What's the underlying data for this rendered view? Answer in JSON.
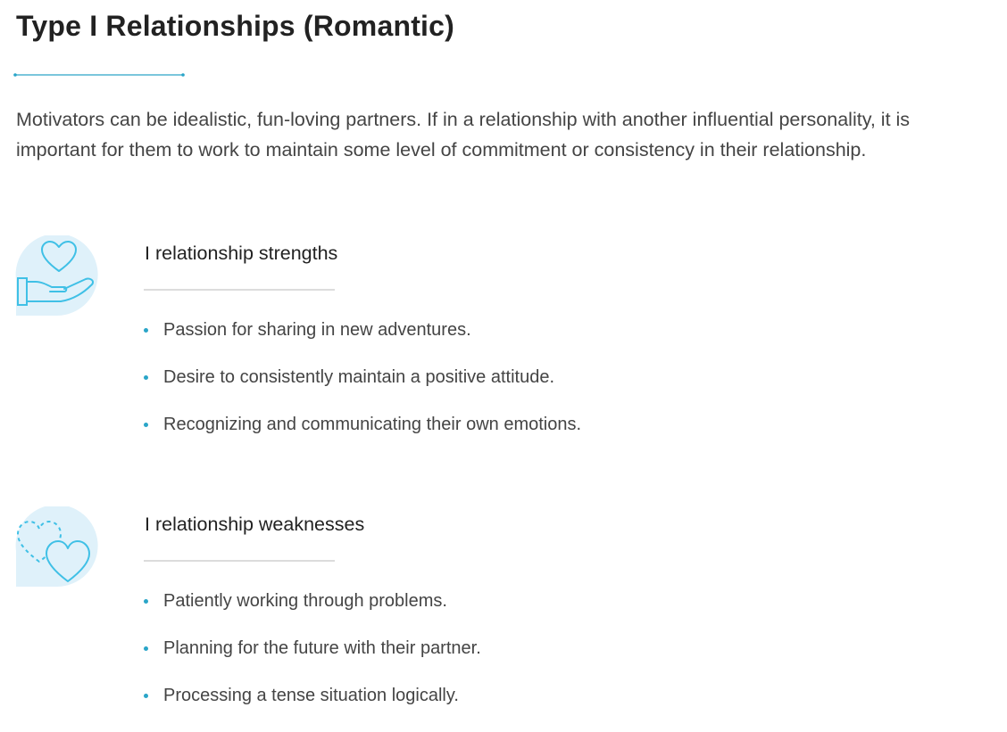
{
  "title": "Type I Relationships (Romantic)",
  "intro": "Motivators can be idealistic, fun-loving partners. If in a relationship with another influential personality, it is important for them to work to maintain some level of commitment or consistency in their relationship.",
  "colors": {
    "accent": "#2aa5c8",
    "icon_bg": "#dff1fa",
    "icon_line": "#3fc0e6",
    "rule": "#dcdcdc"
  },
  "sections": [
    {
      "icon": "heart-in-hand-icon",
      "heading": "I relationship strengths",
      "items": [
        "Passion for sharing in new adventures.",
        "Desire to consistently maintain a positive attitude.",
        "Recognizing and communicating their own emotions."
      ]
    },
    {
      "icon": "two-hearts-icon",
      "heading": "I relationship weaknesses",
      "items": [
        "Patiently working through problems.",
        "Planning for the future with their partner.",
        "Processing a tense situation logically."
      ]
    }
  ]
}
